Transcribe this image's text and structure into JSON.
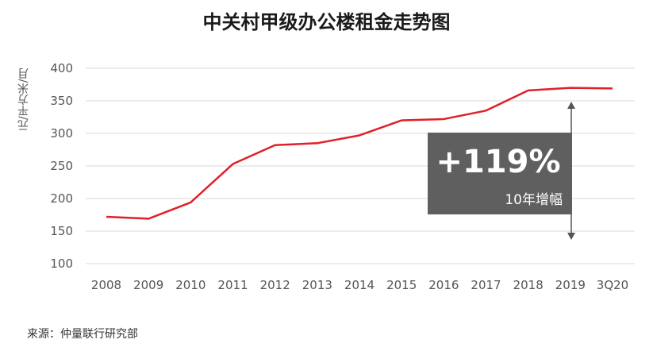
{
  "title": "中关村甲级办公楼租金走势图",
  "source": "来源：仲量联行研究部",
  "callout": {
    "value": "+119%",
    "label": "10年增幅"
  },
  "chart_data": {
    "type": "line",
    "title": "中关村甲级办公楼租金走势图",
    "xlabel": "",
    "ylabel": "元/平方米/月",
    "ylim": [
      100,
      400
    ],
    "yticks": [
      100,
      150,
      200,
      250,
      300,
      350,
      400
    ],
    "grid": true,
    "categories": [
      "2008",
      "2009",
      "2010",
      "2011",
      "2012",
      "2013",
      "2014",
      "2015",
      "2016",
      "2017",
      "2018",
      "2019",
      "3Q20"
    ],
    "series": [
      {
        "values": [
          172,
          169,
          194,
          253,
          282,
          285,
          297,
          320,
          322,
          335,
          366,
          370,
          369
        ],
        "color": "#e0202a"
      }
    ]
  },
  "colors": {
    "line": "#e0202a",
    "grid": "#d9d9d9",
    "callout_bg": "#5f5f5f",
    "arrow": "#555555"
  }
}
